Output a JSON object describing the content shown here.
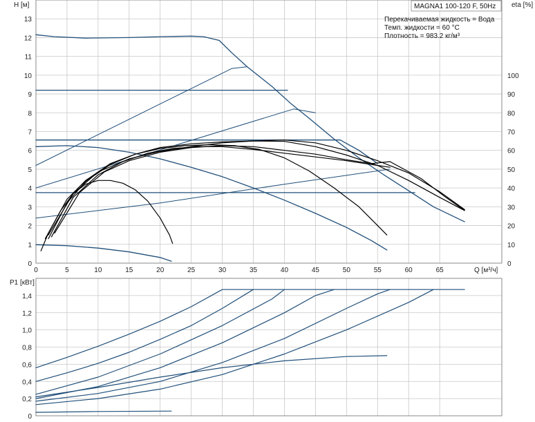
{
  "title": "MAGNA1 100-120 F, 50Hz",
  "info": [
    "Перекачиваемая жидкость = Вода",
    "Темп. жидкости = 60 °C",
    "Плотность = 983.2 кг/м³"
  ],
  "colors": {
    "primary": "#1f4e79",
    "secondary": "#000000",
    "grid": "#c8c8c8"
  },
  "chart_data": [
    {
      "type": "line",
      "xlabel": "Q [м³/ч]",
      "ylabel": "H [м]",
      "ylabel_right": "eta [%]",
      "xlim": [
        0,
        75
      ],
      "ylim": [
        0,
        14
      ],
      "y2lim": [
        0,
        140
      ],
      "xticks": [
        "0",
        "5",
        "10",
        "15",
        "20",
        "25",
        "30",
        "35",
        "40",
        "45",
        "50",
        "55",
        "60",
        "65"
      ],
      "yticks": [
        "0",
        "1",
        "2",
        "3",
        "4",
        "5",
        "6",
        "7",
        "8",
        "9",
        "10",
        "11",
        "12",
        "13"
      ],
      "y2ticks": [
        "0",
        "10",
        "20",
        "30",
        "40",
        "50",
        "60",
        "70",
        "80",
        "90",
        "100"
      ],
      "grid": true,
      "head_curves": [
        [
          [
            0,
            12.15
          ],
          [
            3,
            12.05
          ],
          [
            8,
            11.97
          ],
          [
            15,
            12.0
          ],
          [
            20,
            12.05
          ],
          [
            25,
            12.08
          ],
          [
            27,
            12.05
          ],
          [
            29.5,
            11.85
          ],
          [
            31.5,
            11.2
          ],
          [
            34,
            10.45
          ],
          [
            38,
            9.4
          ],
          [
            41,
            8.5
          ],
          [
            44,
            7.7
          ],
          [
            48,
            6.6
          ],
          [
            52,
            5.6
          ],
          [
            56,
            4.7
          ],
          [
            60,
            3.85
          ],
          [
            64,
            3.0
          ],
          [
            69,
            2.2
          ]
        ],
        [
          [
            0,
            9.2
          ],
          [
            40.5,
            9.2
          ]
        ],
        [
          [
            0,
            6.55
          ],
          [
            49,
            6.55
          ],
          [
            52,
            6.0
          ],
          [
            55,
            5.3
          ]
        ],
        [
          [
            0,
            3.75
          ],
          [
            61,
            3.75
          ]
        ],
        [
          [
            0,
            6.2
          ],
          [
            5,
            6.25
          ],
          [
            10,
            6.15
          ],
          [
            15,
            5.9
          ],
          [
            20,
            5.55
          ],
          [
            25,
            5.1
          ],
          [
            30,
            4.6
          ],
          [
            35,
            4.0
          ],
          [
            40,
            3.35
          ],
          [
            45,
            2.65
          ],
          [
            50,
            1.9
          ],
          [
            54,
            1.2
          ],
          [
            56.5,
            0.7
          ]
        ],
        [
          [
            0,
            0.98
          ],
          [
            5,
            0.93
          ],
          [
            10,
            0.8
          ],
          [
            15,
            0.6
          ],
          [
            20,
            0.3
          ],
          [
            21.8,
            0.1
          ]
        ]
      ],
      "eta_curves": [
        [
          [
            0,
            52
          ],
          [
            31.5,
            103.5
          ],
          [
            34,
            104.5
          ]
        ],
        [
          [
            0,
            40
          ],
          [
            41.5,
            82
          ],
          [
            45,
            80
          ]
        ],
        [
          [
            0,
            24
          ],
          [
            20,
            32
          ],
          [
            40,
            42
          ],
          [
            57,
            50
          ]
        ]
      ],
      "operating_curves": [
        [
          [
            0.8,
            0.65
          ],
          [
            2,
            1.6
          ],
          [
            4,
            2.8
          ],
          [
            6,
            3.7
          ],
          [
            8,
            4.2
          ],
          [
            10,
            4.4
          ],
          [
            12,
            4.4
          ],
          [
            14,
            4.25
          ],
          [
            16,
            3.9
          ],
          [
            18,
            3.3
          ],
          [
            20,
            2.4
          ],
          [
            21.5,
            1.5
          ],
          [
            22,
            1.05
          ]
        ],
        [
          [
            1.5,
            1.3
          ],
          [
            5,
            3.4
          ],
          [
            8,
            4.4
          ],
          [
            12,
            5.3
          ],
          [
            16,
            5.8
          ],
          [
            20,
            6.1
          ],
          [
            24,
            6.25
          ],
          [
            28,
            6.3
          ],
          [
            32,
            6.25
          ],
          [
            36,
            6.05
          ],
          [
            40,
            5.6
          ],
          [
            44,
            4.9
          ],
          [
            48,
            4.0
          ],
          [
            52,
            3.0
          ],
          [
            55,
            2.0
          ],
          [
            56.5,
            1.5
          ]
        ],
        [
          [
            2,
            1.3
          ],
          [
            5,
            3.2
          ],
          [
            8,
            4.35
          ],
          [
            12,
            5.25
          ],
          [
            16,
            5.8
          ],
          [
            20,
            6.15
          ],
          [
            25,
            6.35
          ],
          [
            30,
            6.45
          ],
          [
            35,
            6.5
          ],
          [
            40,
            6.48
          ],
          [
            45,
            6.2
          ],
          [
            50,
            5.75
          ],
          [
            55,
            5.2
          ],
          [
            60,
            4.4
          ],
          [
            65,
            3.5
          ],
          [
            69,
            2.8
          ]
        ],
        [
          [
            2.5,
            1.4
          ],
          [
            6,
            3.5
          ],
          [
            10,
            4.7
          ],
          [
            14,
            5.4
          ],
          [
            18,
            5.85
          ],
          [
            22,
            6.1
          ],
          [
            26,
            6.2
          ],
          [
            30,
            6.2
          ],
          [
            35,
            6.05
          ],
          [
            40,
            5.85
          ],
          [
            45,
            5.65
          ],
          [
            50,
            5.45
          ],
          [
            55,
            5.2
          ],
          [
            57,
            5.1
          ]
        ],
        [
          [
            3,
            1.6
          ],
          [
            7,
            3.75
          ],
          [
            11,
            4.85
          ],
          [
            15,
            5.45
          ],
          [
            20,
            5.9
          ],
          [
            25,
            6.15
          ],
          [
            30,
            6.25
          ],
          [
            35,
            6.2
          ],
          [
            40,
            6.0
          ],
          [
            45,
            5.8
          ],
          [
            50,
            5.5
          ],
          [
            54,
            5.3
          ],
          [
            57,
            5.4
          ],
          [
            62,
            4.5
          ],
          [
            66,
            3.5
          ],
          [
            69,
            2.8
          ]
        ],
        [
          [
            2,
            1.5
          ],
          [
            6,
            3.7
          ],
          [
            10,
            4.85
          ],
          [
            15,
            5.55
          ],
          [
            20,
            5.95
          ],
          [
            25,
            6.2
          ],
          [
            30,
            6.4
          ],
          [
            35,
            6.5
          ],
          [
            40,
            6.55
          ],
          [
            45,
            6.4
          ],
          [
            50,
            6.0
          ],
          [
            55,
            5.45
          ],
          [
            60,
            4.8
          ],
          [
            65,
            3.8
          ],
          [
            69,
            2.85
          ]
        ]
      ]
    },
    {
      "type": "line",
      "xlabel": "",
      "ylabel": "P1 [кВт]",
      "xlim": [
        0,
        75
      ],
      "ylim": [
        0,
        1.6
      ],
      "yticks": [
        "0",
        "0,2",
        "0,4",
        "0,6",
        "0,8",
        "1,0",
        "1,2",
        "1,4"
      ],
      "grid": true,
      "power_curves": [
        [
          [
            0,
            0.56
          ],
          [
            5,
            0.68
          ],
          [
            10,
            0.81
          ],
          [
            15,
            0.95
          ],
          [
            20,
            1.1
          ],
          [
            25,
            1.27
          ],
          [
            30,
            1.47
          ],
          [
            69,
            1.47
          ]
        ],
        [
          [
            0,
            0.4
          ],
          [
            5,
            0.5
          ],
          [
            10,
            0.61
          ],
          [
            15,
            0.74
          ],
          [
            20,
            0.89
          ],
          [
            25,
            1.05
          ],
          [
            30,
            1.25
          ],
          [
            35,
            1.47
          ]
        ],
        [
          [
            0,
            0.25
          ],
          [
            10,
            0.45
          ],
          [
            20,
            0.72
          ],
          [
            30,
            1.05
          ],
          [
            38,
            1.36
          ],
          [
            40,
            1.47
          ]
        ],
        [
          [
            0,
            0.2
          ],
          [
            10,
            0.34
          ],
          [
            20,
            0.56
          ],
          [
            30,
            0.85
          ],
          [
            40,
            1.2
          ],
          [
            45,
            1.4
          ],
          [
            48,
            1.47
          ]
        ],
        [
          [
            0,
            0.17
          ],
          [
            10,
            0.26
          ],
          [
            20,
            0.4
          ],
          [
            30,
            0.62
          ],
          [
            40,
            0.9
          ],
          [
            50,
            1.25
          ],
          [
            55,
            1.42
          ],
          [
            57,
            1.47
          ]
        ],
        [
          [
            0,
            0.13
          ],
          [
            10,
            0.2
          ],
          [
            20,
            0.31
          ],
          [
            30,
            0.48
          ],
          [
            40,
            0.72
          ],
          [
            50,
            1.0
          ],
          [
            60,
            1.32
          ],
          [
            64,
            1.47
          ]
        ],
        [
          [
            0,
            0.22
          ],
          [
            10,
            0.33
          ],
          [
            20,
            0.45
          ],
          [
            30,
            0.56
          ],
          [
            40,
            0.64
          ],
          [
            50,
            0.69
          ],
          [
            56.5,
            0.7
          ]
        ],
        [
          [
            0,
            0.04
          ],
          [
            10,
            0.05
          ],
          [
            21.8,
            0.055
          ]
        ]
      ]
    }
  ]
}
